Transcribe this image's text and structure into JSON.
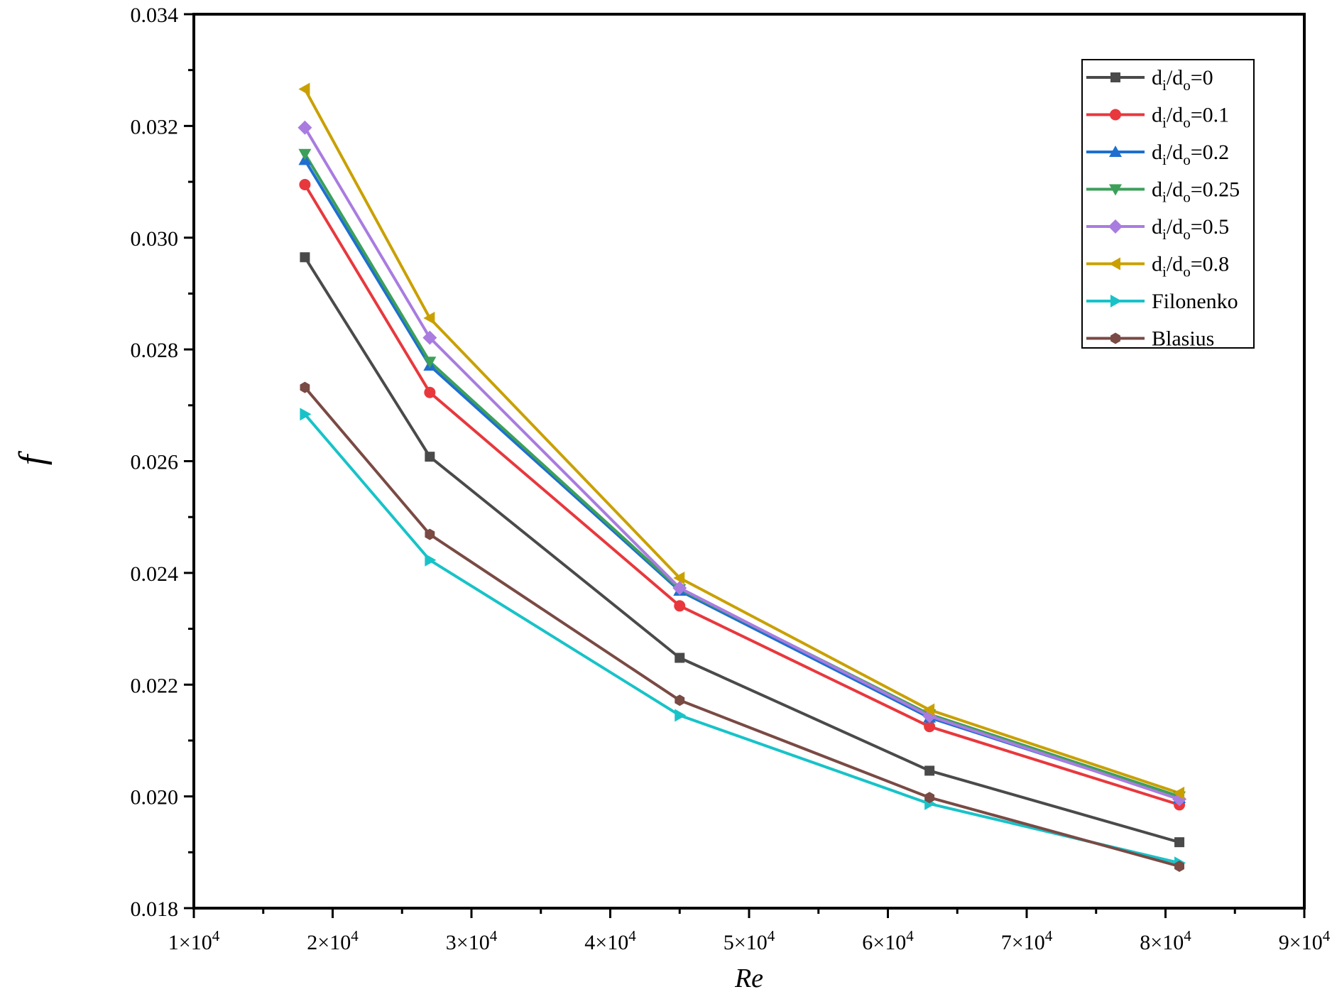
{
  "chart_data": {
    "type": "line",
    "title": "",
    "xlabel": "Re",
    "ylabel": "f",
    "xlim": [
      10000,
      90000
    ],
    "ylim": [
      0.018,
      0.034
    ],
    "x_ticks": [
      {
        "value": 10000,
        "mantissa": "1",
        "base": "×10",
        "exp": "4"
      },
      {
        "value": 20000,
        "mantissa": "2",
        "base": "×10",
        "exp": "4"
      },
      {
        "value": 30000,
        "mantissa": "3",
        "base": "×10",
        "exp": "4"
      },
      {
        "value": 40000,
        "mantissa": "4",
        "base": "×10",
        "exp": "4"
      },
      {
        "value": 50000,
        "mantissa": "5",
        "base": "×10",
        "exp": "4"
      },
      {
        "value": 60000,
        "mantissa": "6",
        "base": "×10",
        "exp": "4"
      },
      {
        "value": 70000,
        "mantissa": "7",
        "base": "×10",
        "exp": "4"
      },
      {
        "value": 80000,
        "mantissa": "8",
        "base": "×10",
        "exp": "4"
      },
      {
        "value": 90000,
        "mantissa": "9",
        "base": "×10",
        "exp": "4"
      }
    ],
    "y_ticks": [
      {
        "value": 0.018,
        "label": "0.018"
      },
      {
        "value": 0.02,
        "label": "0.020"
      },
      {
        "value": 0.022,
        "label": "0.022"
      },
      {
        "value": 0.024,
        "label": "0.024"
      },
      {
        "value": 0.026,
        "label": "0.026"
      },
      {
        "value": 0.028,
        "label": "0.028"
      },
      {
        "value": 0.03,
        "label": "0.030"
      },
      {
        "value": 0.032,
        "label": "0.032"
      },
      {
        "value": 0.034,
        "label": "0.034"
      }
    ],
    "x": [
      18000,
      27000,
      45000,
      63000,
      81000
    ],
    "legend_position": "top-right",
    "series": [
      {
        "name": "di/do=0",
        "label_parts": [
          "d",
          "i",
          "/d",
          "o",
          "=0"
        ],
        "color": "#4a4a4a",
        "marker": "square",
        "values": [
          0.02965,
          0.02608,
          0.02248,
          0.02046,
          0.01918
        ]
      },
      {
        "name": "di/do=0.1",
        "label_parts": [
          "d",
          "i",
          "/d",
          "o",
          "=0.1"
        ],
        "color": "#e8383d",
        "marker": "circle",
        "values": [
          0.03095,
          0.02723,
          0.02341,
          0.02125,
          0.01985
        ]
      },
      {
        "name": "di/do=0.2",
        "label_parts": [
          "d",
          "i",
          "/d",
          "o",
          "=0.2"
        ],
        "color": "#1e6fd0",
        "marker": "triangle-up",
        "values": [
          0.03139,
          0.02771,
          0.02368,
          0.02141,
          0.01997
        ]
      },
      {
        "name": "di/do=0.25",
        "label_parts": [
          "d",
          "i",
          "/d",
          "o",
          "=0.25"
        ],
        "color": "#3ca05a",
        "marker": "triangle-down",
        "values": [
          0.0315,
          0.02778,
          0.02371,
          0.02147,
          0.02
        ]
      },
      {
        "name": "di/do=0.5",
        "label_parts": [
          "d",
          "i",
          "/d",
          "o",
          "=0.5"
        ],
        "color": "#a97ce0",
        "marker": "diamond",
        "values": [
          0.03197,
          0.02821,
          0.02373,
          0.02144,
          0.01995
        ]
      },
      {
        "name": "di/do=0.8",
        "label_parts": [
          "d",
          "i",
          "/d",
          "o",
          "=0.8"
        ],
        "color": "#c9a000",
        "marker": "triangle-left",
        "values": [
          0.03266,
          0.02856,
          0.02391,
          0.02155,
          0.02006
        ]
      },
      {
        "name": "Filonenko",
        "label_parts": [
          "Filonenko",
          "",
          "",
          "",
          ""
        ],
        "color": "#17c3c8",
        "marker": "triangle-right",
        "values": [
          0.02684,
          0.02423,
          0.02145,
          0.01987,
          0.01881
        ]
      },
      {
        "name": "Blasius",
        "label_parts": [
          "Blasius",
          "",
          "",
          "",
          ""
        ],
        "color": "#7a4a44",
        "marker": "hexagon",
        "values": [
          0.02732,
          0.02469,
          0.02172,
          0.01998,
          0.01875
        ]
      }
    ]
  }
}
